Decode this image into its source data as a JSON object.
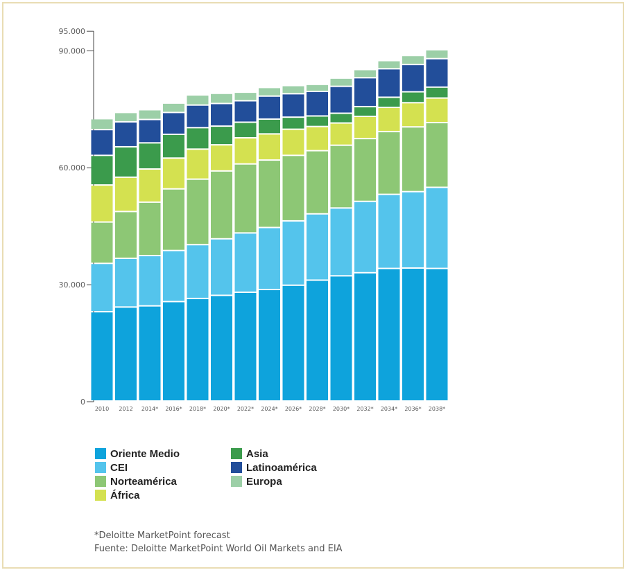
{
  "chart_data": {
    "type": "bar",
    "stacked": true,
    "categories": [
      "2010",
      "2012",
      "2014*",
      "2016*",
      "2018*",
      "2020*",
      "2022*",
      "2024*",
      "2026*",
      "2028*",
      "2030*",
      "2032*",
      "2034*",
      "2036*",
      "2038*"
    ],
    "series": [
      {
        "name": "Oriente Medio",
        "color": "#0ea3dc",
        "values": [
          22900,
          24100,
          24400,
          25500,
          26300,
          27100,
          27900,
          28600,
          29700,
          31000,
          32100,
          32900,
          34000,
          34100,
          34000
        ]
      },
      {
        "name": "CEI",
        "color": "#54c4ec",
        "values": [
          12400,
          12500,
          12900,
          13100,
          13800,
          14500,
          15200,
          15900,
          16500,
          17000,
          17400,
          18300,
          19000,
          19600,
          20800
        ]
      },
      {
        "name": "Norteamérica",
        "color": "#8dc775",
        "values": [
          10600,
          12000,
          13700,
          15800,
          16800,
          17400,
          17700,
          17300,
          16800,
          16200,
          16100,
          16100,
          16100,
          16600,
          16600
        ]
      },
      {
        "name": "África",
        "color": "#d4e150",
        "values": [
          9500,
          8800,
          8500,
          7900,
          7700,
          6700,
          6700,
          6700,
          6700,
          6200,
          5700,
          5700,
          6200,
          6200,
          6300
        ]
      },
      {
        "name": "Asia",
        "color": "#3b9b4c",
        "values": [
          7600,
          7800,
          6700,
          6100,
          5500,
          4800,
          4000,
          3800,
          3100,
          2700,
          2500,
          2500,
          2600,
          2800,
          2800
        ]
      },
      {
        "name": "Latinoamérica",
        "color": "#224e9a",
        "values": [
          6600,
          6400,
          6000,
          5600,
          5800,
          5800,
          5500,
          5900,
          6000,
          6300,
          6900,
          7400,
          7300,
          7000,
          7300
        ]
      },
      {
        "name": "Europa",
        "color": "#9ccfa7",
        "values": [
          2800,
          2400,
          2500,
          2400,
          2600,
          2600,
          2200,
          2200,
          2100,
          1800,
          2100,
          2100,
          2100,
          2300,
          2300
        ]
      }
    ],
    "yticks": [
      {
        "value": 0,
        "label": "0"
      },
      {
        "value": 30000,
        "label": "30.000"
      },
      {
        "value": 60000,
        "label": "60.000"
      },
      {
        "value": 90000,
        "label": "90.000"
      },
      {
        "value": 95000,
        "label": "95.000"
      }
    ],
    "ylim": [
      0,
      95000
    ],
    "legend_position": "bottom-left",
    "grid": false
  },
  "notes": {
    "forecast": "*Deloitte MarketPoint forecast",
    "source": "Fuente: Deloitte MarketPoint World Oil Markets and EIA"
  }
}
